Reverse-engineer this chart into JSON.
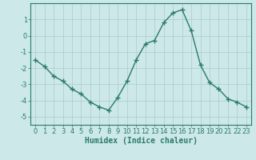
{
  "x": [
    0,
    1,
    2,
    3,
    4,
    5,
    6,
    7,
    8,
    9,
    10,
    11,
    12,
    13,
    14,
    15,
    16,
    17,
    18,
    19,
    20,
    21,
    22,
    23
  ],
  "y": [
    -1.5,
    -1.9,
    -2.5,
    -2.8,
    -3.3,
    -3.6,
    -4.1,
    -4.4,
    -4.6,
    -3.8,
    -2.8,
    -1.5,
    -0.5,
    -0.3,
    0.8,
    1.4,
    1.6,
    0.3,
    -1.8,
    -2.9,
    -3.3,
    -3.9,
    -4.1,
    -4.4
  ],
  "line_color": "#2a7a6a",
  "marker": "+",
  "marker_size": 4,
  "marker_linewidth": 1.0,
  "bg_color": "#cce8e8",
  "grid_color": "#aacccc",
  "xlabel": "Humidex (Indice chaleur)",
  "xlim": [
    -0.5,
    23.5
  ],
  "ylim": [
    -5.5,
    2.0
  ],
  "yticks": [
    1,
    0,
    -1,
    -2,
    -3,
    -4,
    -5
  ],
  "xticks": [
    0,
    1,
    2,
    3,
    4,
    5,
    6,
    7,
    8,
    9,
    10,
    11,
    12,
    13,
    14,
    15,
    16,
    17,
    18,
    19,
    20,
    21,
    22,
    23
  ],
  "tick_fontsize": 6,
  "xlabel_fontsize": 7,
  "spine_color": "#2a7a6a",
  "line_width": 1.0
}
